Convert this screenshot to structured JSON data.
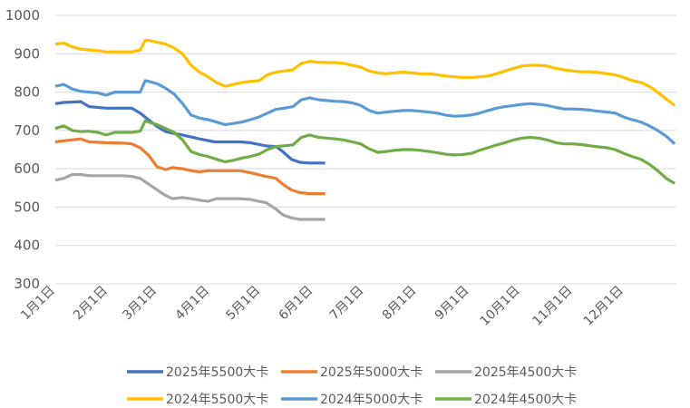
{
  "chart_data": {
    "type": "line",
    "title": "",
    "xlabel": "",
    "ylabel": "",
    "ylim": [
      300,
      1000
    ],
    "yticks": [
      300,
      400,
      500,
      600,
      700,
      800,
      900,
      1000
    ],
    "x_tick_labels": [
      "1月1日",
      "2月1日",
      "3月1日",
      "4月1日",
      "5月1日",
      "6月1日",
      "7月1日",
      "8月1日",
      "9月1日",
      "10月1日",
      "11月1日",
      "12月1日"
    ],
    "grid": "horizontal",
    "legend_position": "bottom",
    "series": [
      {
        "name": "2025年5500大卡",
        "color": "#4472C4",
        "x": [
          1,
          6,
          16,
          21,
          31,
          46,
          51,
          61,
          66,
          70,
          76,
          86,
          95,
          100,
          110,
          116,
          125,
          131,
          135,
          140,
          145,
          151,
          160
        ],
        "values": [
          770,
          773,
          775,
          762,
          758,
          758,
          745,
          710,
          697,
          693,
          688,
          678,
          670,
          670,
          670,
          668,
          660,
          658,
          645,
          625,
          617,
          615,
          615
        ]
      },
      {
        "name": "2025年5000大卡",
        "color": "#ED7D31",
        "x": [
          1,
          6,
          16,
          21,
          31,
          41,
          46,
          51,
          56,
          61,
          66,
          70,
          76,
          81,
          86,
          91,
          96,
          110,
          116,
          125,
          131,
          135,
          140,
          145,
          151,
          160
        ],
        "values": [
          670,
          673,
          678,
          670,
          668,
          667,
          665,
          655,
          635,
          605,
          598,
          603,
          600,
          595,
          592,
          595,
          595,
          595,
          590,
          580,
          575,
          560,
          545,
          538,
          535,
          535
        ]
      },
      {
        "name": "2025年4500大卡",
        "color": "#A5A5A5",
        "x": [
          1,
          6,
          11,
          16,
          21,
          31,
          41,
          46,
          51,
          56,
          61,
          66,
          70,
          76,
          81,
          86,
          91,
          96,
          110,
          116,
          121,
          125,
          131,
          135,
          140,
          145,
          151,
          160
        ],
        "values": [
          570,
          575,
          585,
          585,
          582,
          582,
          582,
          580,
          575,
          560,
          545,
          530,
          522,
          525,
          522,
          518,
          515,
          522,
          522,
          520,
          515,
          512,
          495,
          480,
          472,
          468,
          468,
          468
        ]
      },
      {
        "name": "2024年5500大卡",
        "color": "#FFC000",
        "x": [
          1,
          6,
          11,
          16,
          21,
          26,
          31,
          36,
          41,
          46,
          51,
          54,
          56,
          61,
          66,
          71,
          76,
          81,
          86,
          91,
          96,
          101,
          106,
          111,
          116,
          121,
          126,
          131,
          136,
          141,
          146,
          151,
          156,
          161,
          166,
          171,
          176,
          181,
          186,
          191,
          196,
          201,
          206,
          211,
          216,
          221,
          226,
          231,
          236,
          241,
          246,
          251,
          256,
          261,
          266,
          271,
          276,
          281,
          286,
          291,
          296,
          301,
          306,
          311,
          316,
          321,
          326,
          331,
          336,
          341,
          346,
          351,
          356,
          361,
          366
        ],
        "values": [
          925,
          928,
          918,
          912,
          910,
          908,
          905,
          905,
          905,
          905,
          910,
          935,
          935,
          930,
          925,
          915,
          900,
          870,
          852,
          840,
          825,
          815,
          820,
          825,
          828,
          830,
          845,
          852,
          855,
          858,
          875,
          880,
          878,
          877,
          877,
          875,
          870,
          865,
          855,
          850,
          848,
          850,
          852,
          850,
          848,
          848,
          845,
          842,
          840,
          838,
          838,
          840,
          842,
          848,
          855,
          862,
          868,
          870,
          870,
          868,
          862,
          858,
          855,
          853,
          853,
          851,
          848,
          845,
          838,
          830,
          825,
          815,
          800,
          782,
          765
        ]
      },
      {
        "name": "2024年5000大卡",
        "color": "#5B9BD5",
        "x": [
          1,
          6,
          11,
          16,
          21,
          26,
          31,
          36,
          41,
          46,
          51,
          54,
          56,
          61,
          66,
          71,
          76,
          81,
          86,
          91,
          96,
          101,
          106,
          111,
          116,
          121,
          126,
          131,
          136,
          141,
          146,
          151,
          156,
          161,
          166,
          171,
          176,
          181,
          186,
          191,
          196,
          201,
          206,
          211,
          216,
          221,
          226,
          231,
          236,
          241,
          246,
          251,
          256,
          261,
          266,
          271,
          276,
          281,
          286,
          291,
          296,
          301,
          306,
          311,
          316,
          321,
          326,
          331,
          336,
          341,
          346,
          351,
          356,
          361,
          366
        ],
        "values": [
          815,
          820,
          808,
          802,
          800,
          798,
          792,
          800,
          800,
          800,
          800,
          830,
          828,
          822,
          810,
          795,
          770,
          740,
          732,
          728,
          722,
          715,
          718,
          722,
          728,
          735,
          745,
          755,
          758,
          762,
          780,
          785,
          780,
          778,
          776,
          775,
          772,
          765,
          752,
          745,
          748,
          750,
          752,
          752,
          750,
          748,
          745,
          740,
          737,
          738,
          740,
          745,
          752,
          758,
          762,
          765,
          768,
          770,
          768,
          765,
          760,
          756,
          756,
          755,
          753,
          750,
          748,
          745,
          735,
          728,
          722,
          712,
          700,
          685,
          665
        ]
      },
      {
        "name": "2024年4500大卡",
        "color": "#70AD47",
        "x": [
          1,
          6,
          11,
          16,
          21,
          26,
          31,
          36,
          41,
          46,
          51,
          54,
          56,
          61,
          66,
          71,
          76,
          81,
          86,
          91,
          96,
          101,
          106,
          111,
          116,
          121,
          126,
          131,
          136,
          141,
          146,
          151,
          156,
          161,
          166,
          171,
          176,
          181,
          186,
          191,
          196,
          201,
          206,
          211,
          216,
          221,
          226,
          231,
          236,
          241,
          246,
          251,
          256,
          261,
          266,
          271,
          276,
          281,
          286,
          291,
          296,
          301,
          306,
          311,
          316,
          321,
          326,
          331,
          336,
          341,
          346,
          351,
          356,
          361,
          366
        ],
        "values": [
          705,
          712,
          700,
          697,
          698,
          695,
          688,
          695,
          695,
          695,
          698,
          725,
          722,
          715,
          705,
          695,
          675,
          645,
          637,
          632,
          625,
          618,
          622,
          628,
          632,
          638,
          650,
          658,
          660,
          662,
          682,
          688,
          682,
          680,
          678,
          675,
          670,
          665,
          652,
          643,
          645,
          648,
          650,
          650,
          648,
          645,
          642,
          638,
          636,
          637,
          640,
          648,
          655,
          662,
          668,
          675,
          680,
          682,
          680,
          675,
          668,
          665,
          665,
          663,
          660,
          657,
          655,
          650,
          640,
          632,
          625,
          612,
          595,
          575,
          562
        ]
      }
    ]
  }
}
